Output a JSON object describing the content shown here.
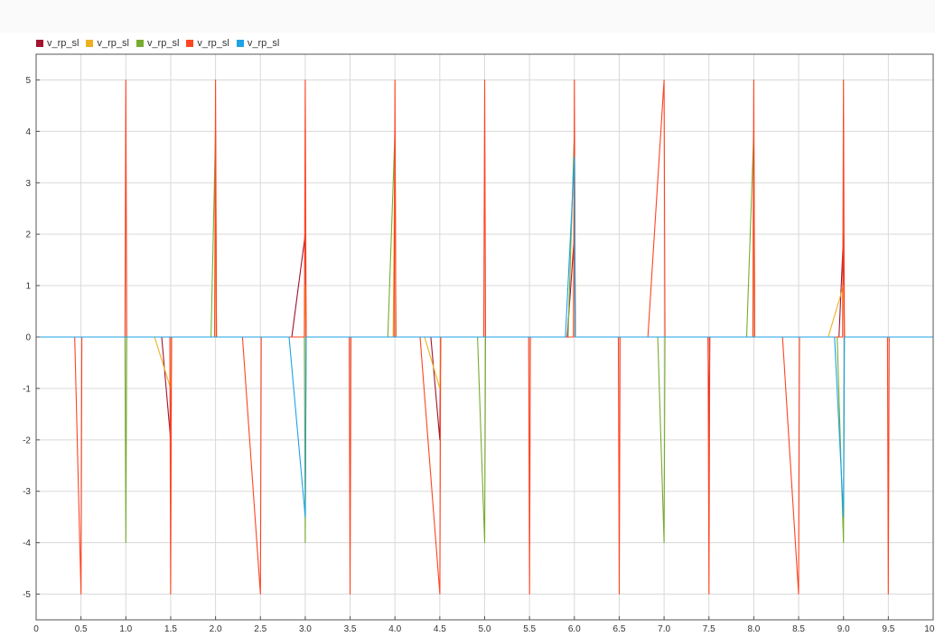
{
  "chart_data": {
    "type": "line",
    "title": "",
    "xlabel": "",
    "ylabel": "",
    "xlim": [
      0,
      10
    ],
    "ylim": [
      -5.5,
      5.5
    ],
    "x_ticks": [
      0,
      0.5,
      1,
      1.5,
      2,
      2.5,
      3,
      3.5,
      4,
      4.5,
      5,
      5.5,
      6,
      6.5,
      7,
      7.5,
      8,
      8.5,
      9,
      9.5,
      10
    ],
    "x_tick_labels": [
      "0",
      "0.5",
      "1.0",
      "1.5",
      "2.0",
      "2.5",
      "3.0",
      "3.5",
      "4.0",
      "4.5",
      "5.0",
      "5.5",
      "6.0",
      "6.5",
      "7.0",
      "7.5",
      "8.0",
      "8.5",
      "9.0",
      "9.5",
      "10.0"
    ],
    "y_ticks": [
      5,
      4,
      3,
      2,
      1,
      0,
      -1,
      -2,
      -3,
      -4,
      -5
    ],
    "y_tick_labels": [
      "5",
      "4",
      "3",
      "2",
      "1",
      "0",
      "-1",
      "-2",
      "-3",
      "-4",
      "-5"
    ],
    "grid": true,
    "legend_position": "top-left",
    "series": [
      {
        "name": "v_rp_sl",
        "color": "#a2142f",
        "x": [
          0,
          1.4,
          1.5,
          1.51,
          2.85,
          3.0,
          3.01,
          4.4,
          4.5,
          4.51,
          5.92,
          6.0,
          6.01,
          7.49,
          7.5,
          7.51,
          8.95,
          9.0,
          9.01,
          10
        ],
        "y": [
          0,
          0,
          -2,
          0,
          0,
          2,
          0,
          0,
          -2,
          0,
          0,
          2,
          0,
          0,
          -2,
          0,
          0,
          2,
          0,
          0
        ]
      },
      {
        "name": "v_rp_sl",
        "color": "#edb120",
        "x": [
          0,
          1.32,
          1.5,
          1.51,
          1.99,
          2.0,
          2.01,
          2.99,
          3.0,
          3.01,
          3.98,
          4.0,
          4.01,
          4.33,
          4.5,
          4.51,
          5.99,
          6.0,
          6.01,
          7.99,
          8.0,
          8.01,
          8.83,
          9.0,
          9.01,
          10
        ],
        "y": [
          0,
          0,
          -1,
          0,
          0,
          4,
          0,
          0,
          1,
          0,
          0,
          4,
          0,
          0,
          -1,
          0,
          0,
          4,
          0,
          0,
          4,
          0,
          0,
          1,
          0,
          0
        ]
      },
      {
        "name": "v_rp_sl",
        "color": "#77ac30",
        "x": [
          0,
          0.99,
          1.0,
          1.01,
          1.95,
          2.0,
          2.01,
          2.99,
          3.0,
          3.01,
          3.92,
          4.0,
          4.01,
          4.92,
          5.0,
          5.01,
          5.93,
          6.0,
          6.01,
          6.93,
          7.0,
          7.01,
          7.92,
          8.0,
          8.01,
          8.93,
          9.0,
          9.01,
          10
        ],
        "y": [
          0,
          0,
          -4,
          0,
          0,
          4,
          0,
          0,
          -4,
          0,
          0,
          4,
          0,
          0,
          -4,
          0,
          0,
          4,
          0,
          0,
          -4,
          0,
          0,
          4,
          0,
          0,
          -4,
          0,
          0
        ]
      },
      {
        "name": "v_rp_sl",
        "color": "#ff4422",
        "x": [
          0,
          0.43,
          0.5,
          0.51,
          0.99,
          1.0,
          1.01,
          1.49,
          1.5,
          1.51,
          1.99,
          2.0,
          2.01,
          2.3,
          2.5,
          2.51,
          2.99,
          3.0,
          3.01,
          3.49,
          3.5,
          3.51,
          3.99,
          4.0,
          4.01,
          4.28,
          4.5,
          4.51,
          4.99,
          5.0,
          5.01,
          5.49,
          5.5,
          5.51,
          5.99,
          6.0,
          6.01,
          6.49,
          6.5,
          6.51,
          6.82,
          7.0,
          7.01,
          7.49,
          7.5,
          7.51,
          7.99,
          8.0,
          8.01,
          8.32,
          8.5,
          8.51,
          8.99,
          9.0,
          9.01,
          9.49,
          9.5,
          9.51,
          10
        ],
        "y": [
          0,
          0,
          -5,
          0,
          0,
          5,
          0,
          0,
          -5,
          0,
          0,
          5,
          0,
          0,
          -5,
          0,
          0,
          5,
          0,
          0,
          -5,
          0,
          0,
          5,
          0,
          0,
          -5,
          0,
          0,
          5,
          0,
          0,
          -5,
          0,
          0,
          5,
          0,
          0,
          -5,
          0,
          0,
          5,
          0,
          0,
          -5,
          0,
          0,
          5,
          0,
          0,
          -5,
          0,
          0,
          5,
          0,
          0,
          -5,
          0,
          0
        ]
      },
      {
        "name": "v_rp_sl",
        "color": "#1ea2e6",
        "x": [
          0,
          2.82,
          3.0,
          3.01,
          5.9,
          6.0,
          6.01,
          8.9,
          9.0,
          9.01,
          10
        ],
        "y": [
          0,
          0,
          -3.5,
          0,
          0,
          3.5,
          0,
          0,
          -3.5,
          0,
          0
        ]
      }
    ]
  }
}
